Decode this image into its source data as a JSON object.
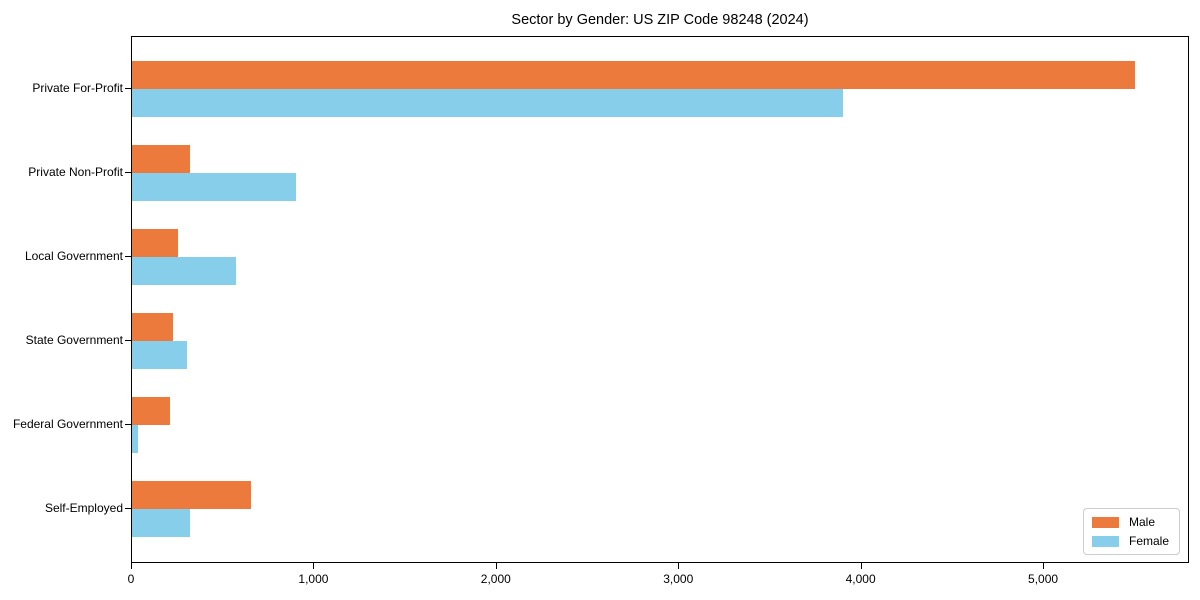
{
  "chart_data": {
    "type": "bar",
    "orientation": "horizontal",
    "title": "Sector by Gender: US ZIP Code 98248 (2024)",
    "categories": [
      "Private For-Profit",
      "Private Non-Profit",
      "Local Government",
      "State Government",
      "Federal Government",
      "Self-Employed"
    ],
    "series": [
      {
        "name": "Male",
        "color": "#ec7a3c",
        "values": [
          5500,
          320,
          250,
          225,
          210,
          650
        ]
      },
      {
        "name": "Female",
        "color": "#87ceeb",
        "values": [
          3900,
          900,
          570,
          300,
          35,
          320
        ]
      }
    ],
    "xlabel": "",
    "ylabel": "",
    "xlim": [
      0,
      5800
    ],
    "xticks": [
      0,
      1000,
      2000,
      3000,
      4000,
      5000
    ],
    "xtick_labels": [
      "0",
      "1,000",
      "2,000",
      "3,000",
      "4,000",
      "5,000"
    ],
    "grid": false,
    "legend": {
      "position": "lower right"
    }
  }
}
